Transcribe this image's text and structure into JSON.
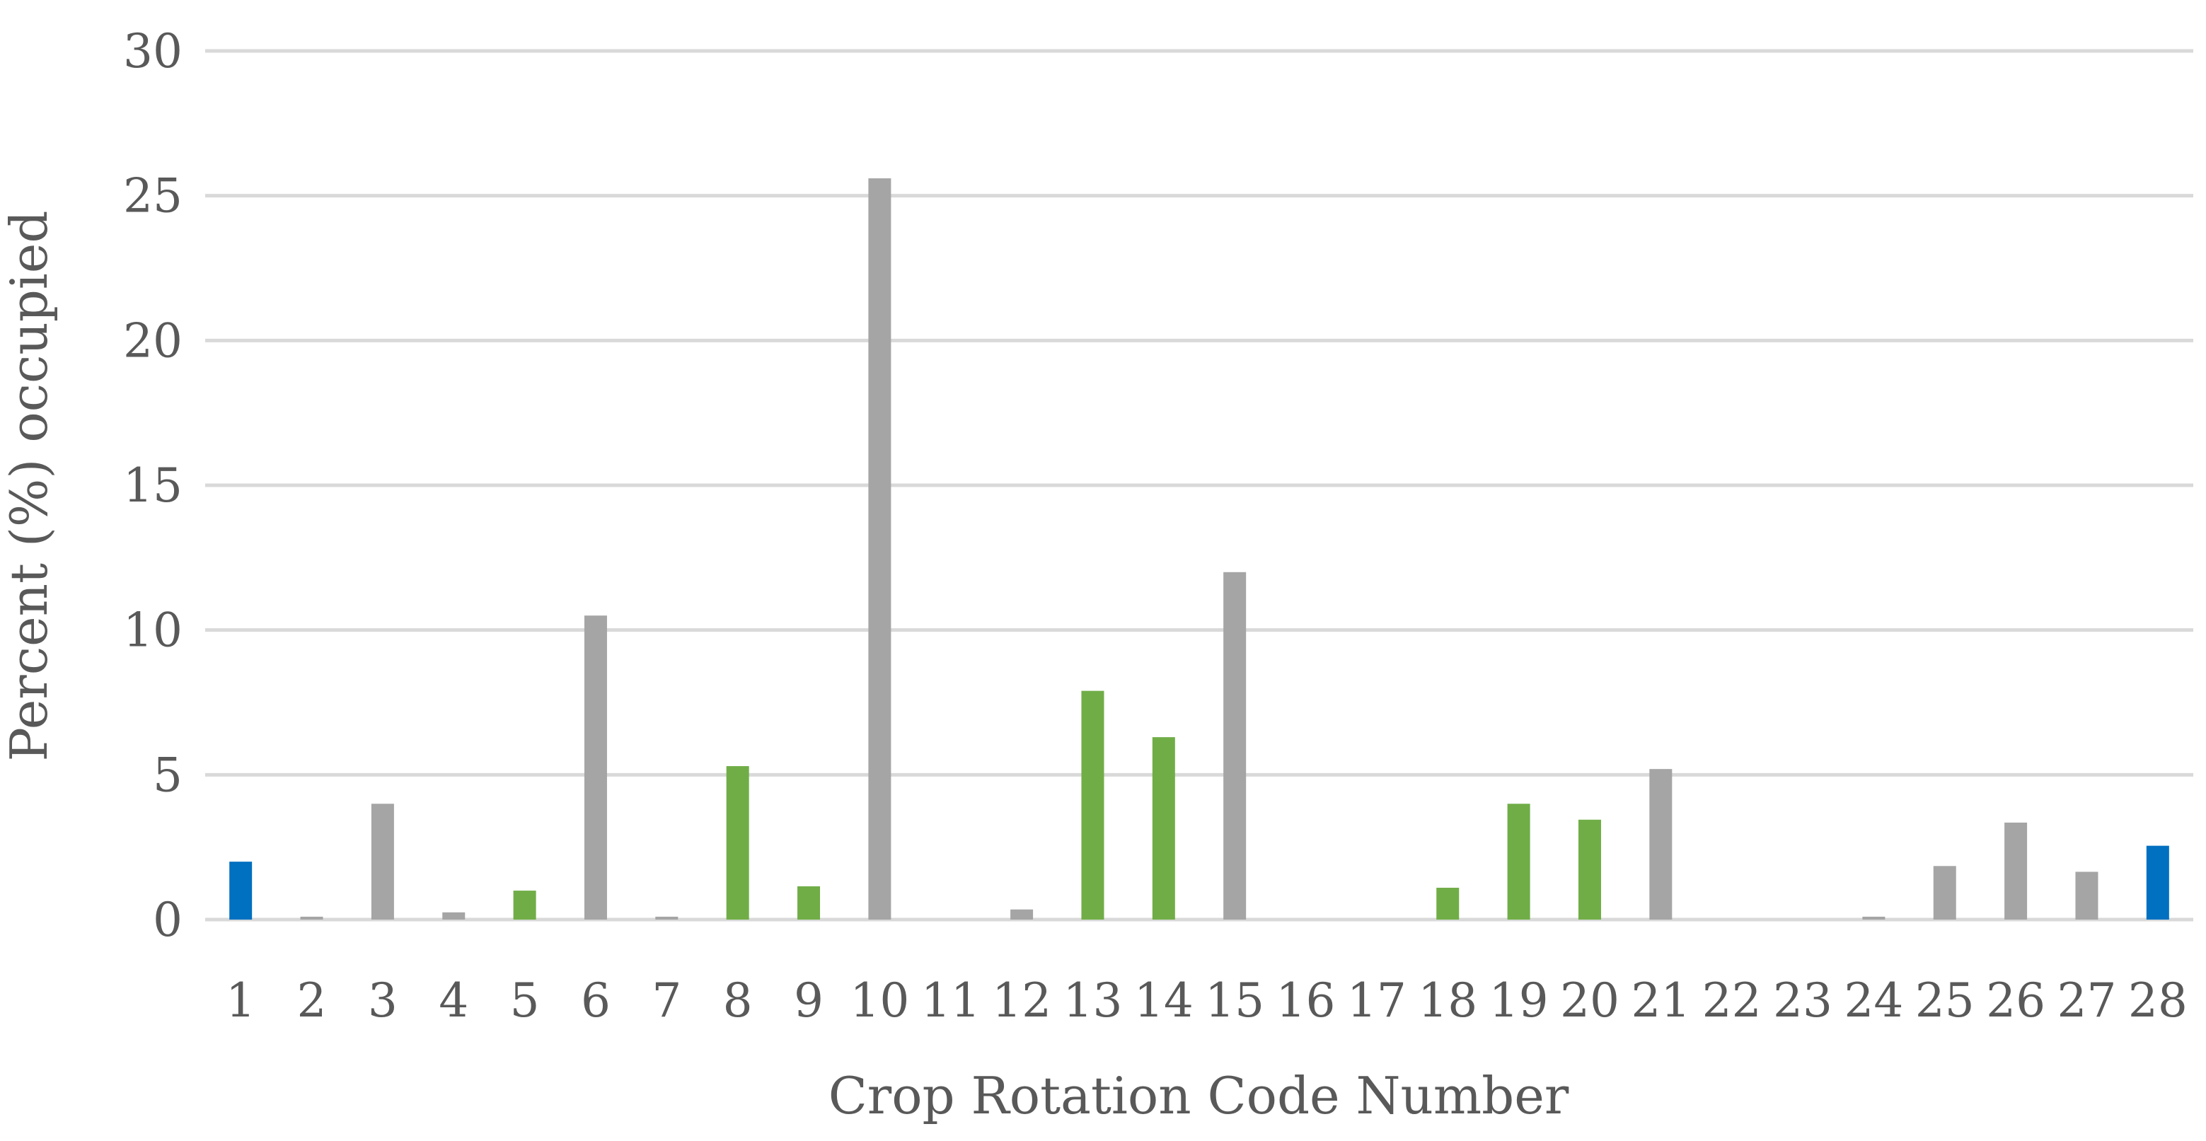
{
  "chart_data": {
    "type": "bar",
    "title": "",
    "xlabel": "Crop Rotation Code Number",
    "ylabel": "Percent (%) occupied",
    "ylim": [
      0,
      30
    ],
    "yticks": [
      "0",
      "5",
      "10",
      "15",
      "20",
      "25",
      "30"
    ],
    "grid": true,
    "legend": "none",
    "categories": [
      "1",
      "2",
      "3",
      "4",
      "5",
      "6",
      "7",
      "8",
      "9",
      "10",
      "11",
      "12",
      "13",
      "14",
      "15",
      "16",
      "17",
      "18",
      "19",
      "20",
      "21",
      "22",
      "23",
      "24",
      "25",
      "26",
      "27",
      "28"
    ],
    "values": [
      2.0,
      0.1,
      4.0,
      0.25,
      1.0,
      10.5,
      0.1,
      5.3,
      1.15,
      25.6,
      0,
      0.35,
      7.9,
      6.3,
      12.0,
      0,
      0,
      1.1,
      4.0,
      3.45,
      5.2,
      0,
      0,
      0.1,
      1.85,
      3.35,
      1.65,
      2.55
    ],
    "bar_groups": [
      "blue",
      "gray",
      "gray",
      "gray",
      "green",
      "gray",
      "gray",
      "green",
      "green",
      "gray",
      "gray",
      "gray",
      "green",
      "green",
      "gray",
      "gray",
      "gray",
      "green",
      "green",
      "green",
      "gray",
      "gray",
      "gray",
      "gray",
      "gray",
      "gray",
      "gray",
      "blue"
    ],
    "colors": {
      "blue": "#0070c0",
      "gray": "#a5a5a5",
      "green": "#70ad47",
      "grid": "#d9d9d9",
      "text": "#595959"
    }
  }
}
